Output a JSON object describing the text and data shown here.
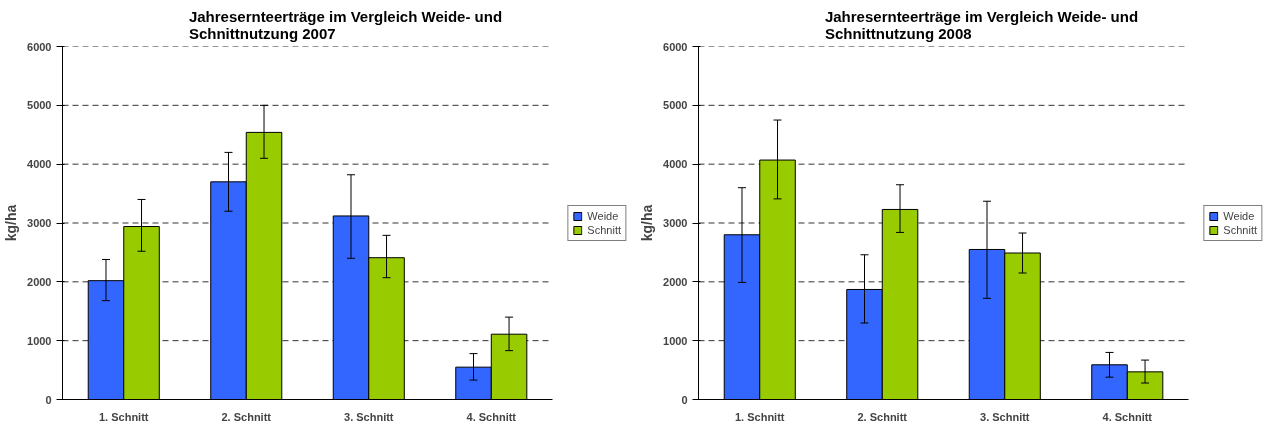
{
  "chart_data": [
    {
      "type": "bar",
      "title": "Jahresernteerträge im Vergleich Weide- und\nSchnittnutzung 2007",
      "ylabel": "kg/ha",
      "categories": [
        "1. Schnitt",
        "2. Schnitt",
        "3. Schnitt",
        "4. Schnitt"
      ],
      "series": [
        {
          "name": "Weide",
          "color": "#3366ff",
          "values": [
            2020,
            3700,
            3120,
            550
          ],
          "errors": [
            [
              1680,
              2380
            ],
            [
              3200,
              4200
            ],
            [
              2400,
              3820
            ],
            [
              330,
              780
            ]
          ]
        },
        {
          "name": "Schnitt",
          "color": "#99cc00",
          "values": [
            2940,
            4540,
            2410,
            1110
          ],
          "errors": [
            [
              2520,
              3400
            ],
            [
              4100,
              5000
            ],
            [
              2070,
              2790
            ],
            [
              830,
              1400
            ]
          ]
        }
      ],
      "ylim": [
        0,
        6000
      ],
      "yticks": [
        0,
        1000,
        2000,
        3000,
        4000,
        5000,
        6000
      ],
      "grid": "y",
      "legend": "right"
    },
    {
      "type": "bar",
      "title": "Jahresernteerträge im Vergleich Weide- und\nSchnittnutzung 2008",
      "ylabel": "kg/ha",
      "categories": [
        "1. Schnitt",
        "2. Schnitt",
        "3. Schnitt",
        "4. Schnitt"
      ],
      "series": [
        {
          "name": "Weide",
          "color": "#3366ff",
          "values": [
            2800,
            1870,
            2550,
            590
          ],
          "errors": [
            [
              1990,
              3600
            ],
            [
              1300,
              2460
            ],
            [
              1720,
              3370
            ],
            [
              380,
              800
            ]
          ]
        },
        {
          "name": "Schnitt",
          "color": "#99cc00",
          "values": [
            4070,
            3230,
            2490,
            470
          ],
          "errors": [
            [
              3410,
              4750
            ],
            [
              2840,
              3650
            ],
            [
              2150,
              2830
            ],
            [
              280,
              670
            ]
          ]
        }
      ],
      "ylim": [
        0,
        6000
      ],
      "yticks": [
        0,
        1000,
        2000,
        3000,
        4000,
        5000,
        6000
      ],
      "grid": "y",
      "legend": "right"
    }
  ]
}
